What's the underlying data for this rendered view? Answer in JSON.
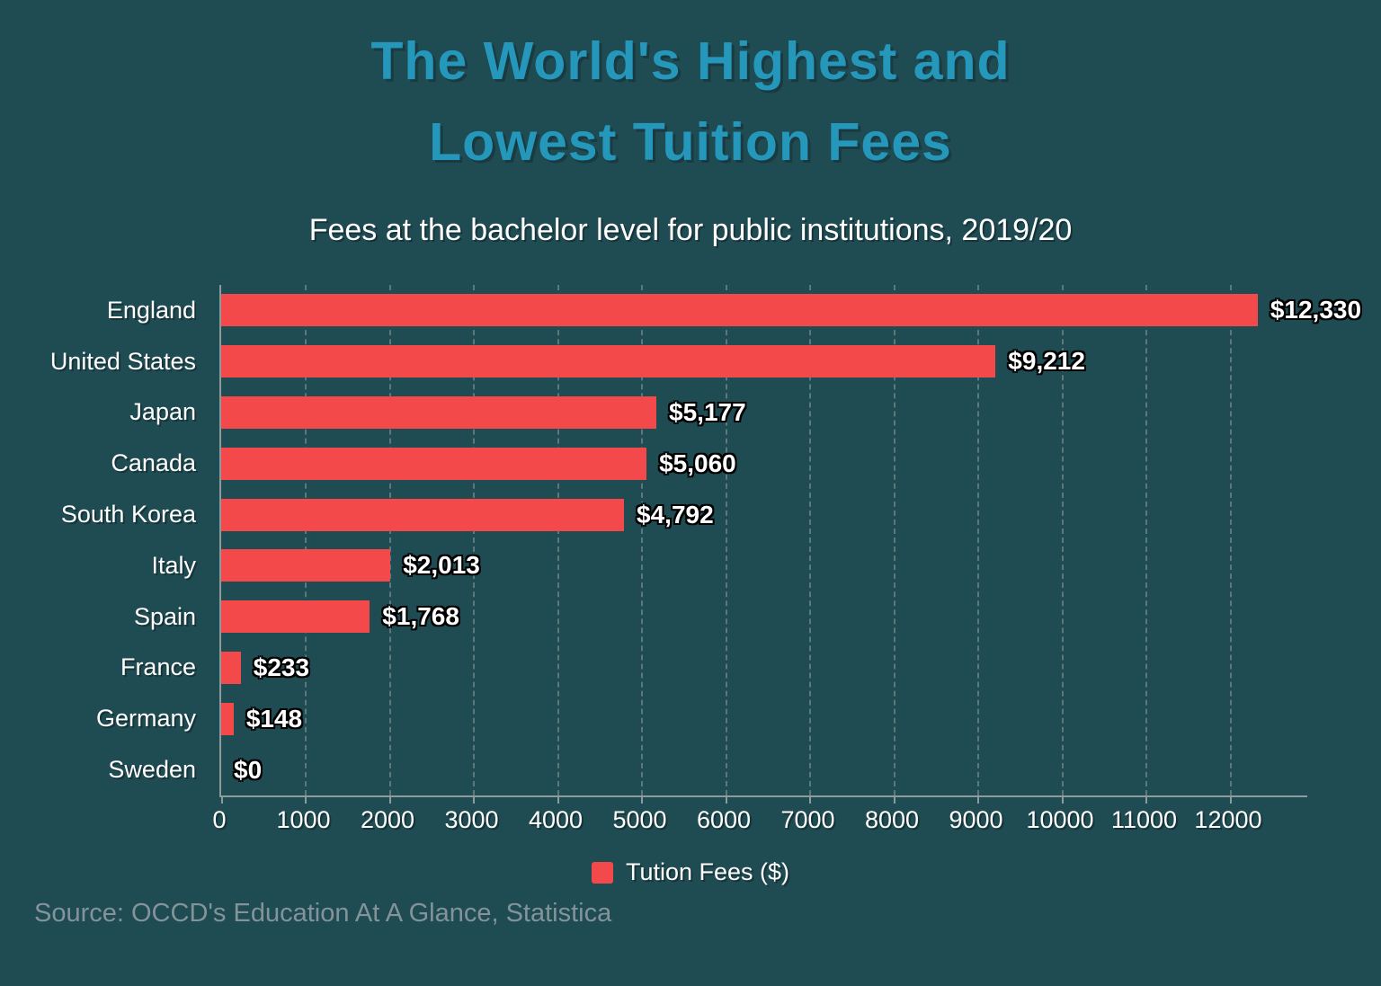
{
  "title": {
    "line1": "The World's Highest and",
    "line2": "Lowest Tuition Fees"
  },
  "subtitle": "Fees at the bachelor level for public institutions, 2019/20",
  "source": "Source: OCCD's Education At A Glance, Statistica",
  "legend": {
    "label": "Tution Fees ($)"
  },
  "colors": {
    "background": "#1f4b52",
    "title": "#2497ba",
    "bar": "#f4494b",
    "axis": "#8d9b9d",
    "gridline": "#5d777b",
    "label_text": "#ffffff",
    "source_text": "#82949a"
  },
  "chart_data": {
    "type": "bar",
    "orientation": "horizontal",
    "title": "The World's Highest and Lowest Tuition Fees",
    "subtitle": "Fees at the bachelor level for public institutions, 2019/20",
    "categories": [
      "England",
      "United States",
      "Japan",
      "Canada",
      "South Korea",
      "Italy",
      "Spain",
      "France",
      "Germany",
      "Sweden"
    ],
    "values": [
      12330,
      9212,
      5177,
      5060,
      4792,
      2013,
      1768,
      233,
      148,
      0
    ],
    "value_labels": [
      "$12,330",
      "$9,212",
      "$5,177",
      "$5,060",
      "$4,792",
      "$2,013",
      "$1,768",
      "$233",
      "$148",
      "$0"
    ],
    "series_name": "Tution Fees ($)",
    "xlabel": "",
    "ylabel": "",
    "xlim": [
      0,
      12920
    ],
    "xticks": [
      0,
      1000,
      2000,
      3000,
      4000,
      5000,
      6000,
      7000,
      8000,
      9000,
      10000,
      11000,
      12000
    ],
    "xtick_labels": [
      "0",
      "1000",
      "2000",
      "3000",
      "4000",
      "5000",
      "6000",
      "7000",
      "8000",
      "9000",
      "10000",
      "11000",
      "12000"
    ],
    "grid": "vertical-dashed",
    "legend_position": "bottom"
  }
}
